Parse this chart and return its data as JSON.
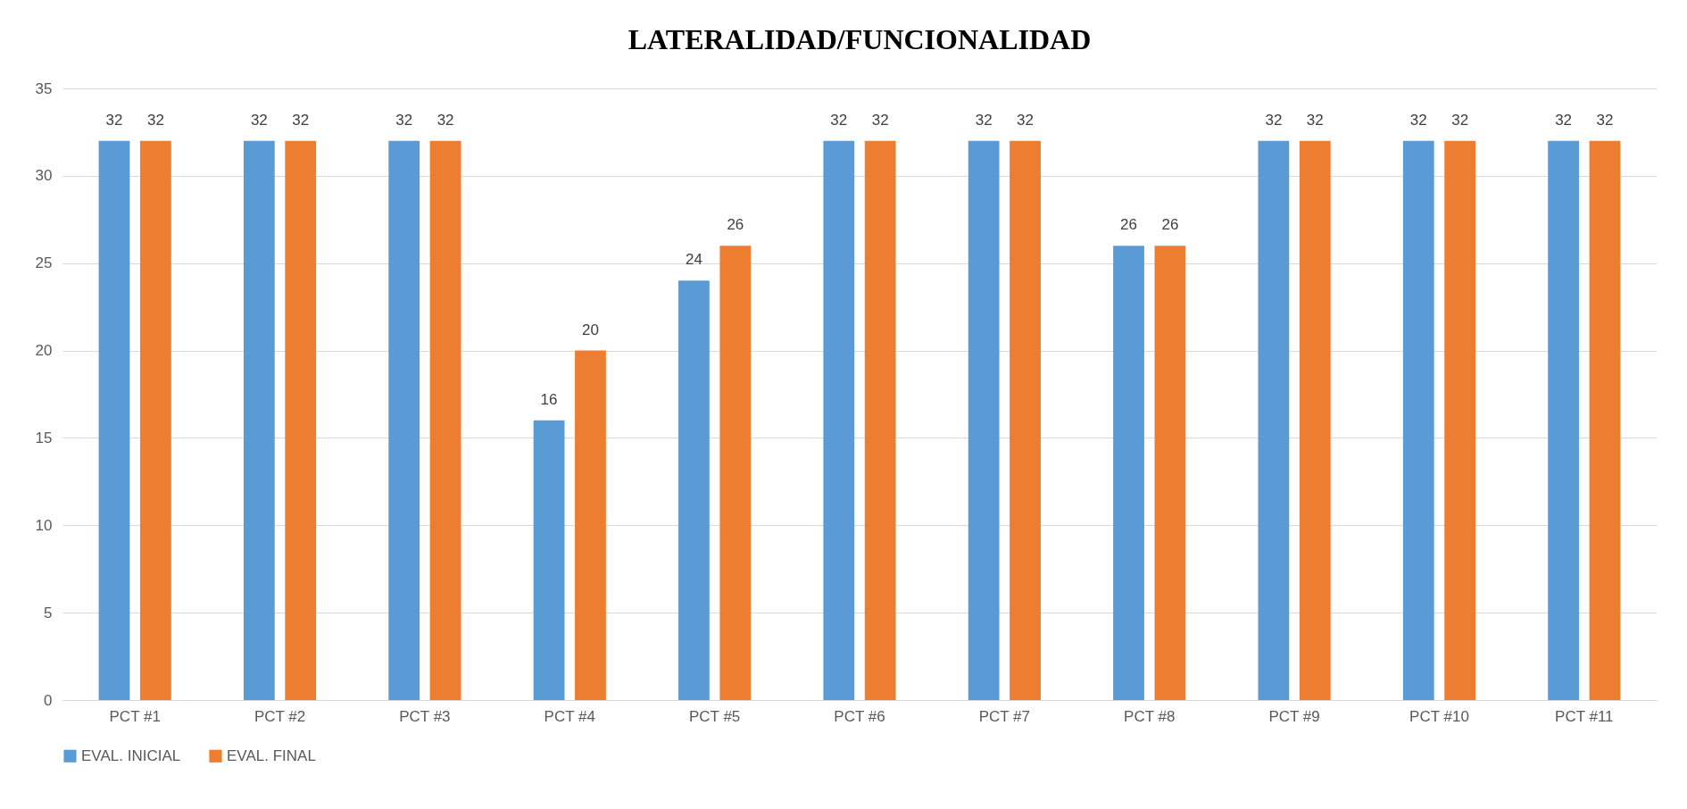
{
  "chart_data": {
    "type": "bar",
    "title": "LATERALIDAD/FUNCIONALIDAD",
    "categories": [
      "PCT #1",
      "PCT #2",
      "PCT #3",
      "PCT #4",
      "PCT #5",
      "PCT #6",
      "PCT #7",
      "PCT #8",
      "PCT #9",
      "PCT #10",
      "PCT #11"
    ],
    "series": [
      {
        "name": "EVAL. INICIAL",
        "color": "#5b9bd5",
        "values": [
          32,
          32,
          32,
          16,
          24,
          32,
          32,
          26,
          32,
          32,
          32
        ]
      },
      {
        "name": "EVAL. FINAL",
        "color": "#ed7d31",
        "values": [
          32,
          32,
          32,
          20,
          26,
          32,
          32,
          26,
          32,
          32,
          32
        ]
      }
    ],
    "ylim": [
      0,
      35
    ],
    "yticks": [
      0,
      5,
      10,
      15,
      20,
      25,
      30,
      35
    ],
    "grid": "y",
    "legend": "bottom",
    "data_labels": true
  }
}
